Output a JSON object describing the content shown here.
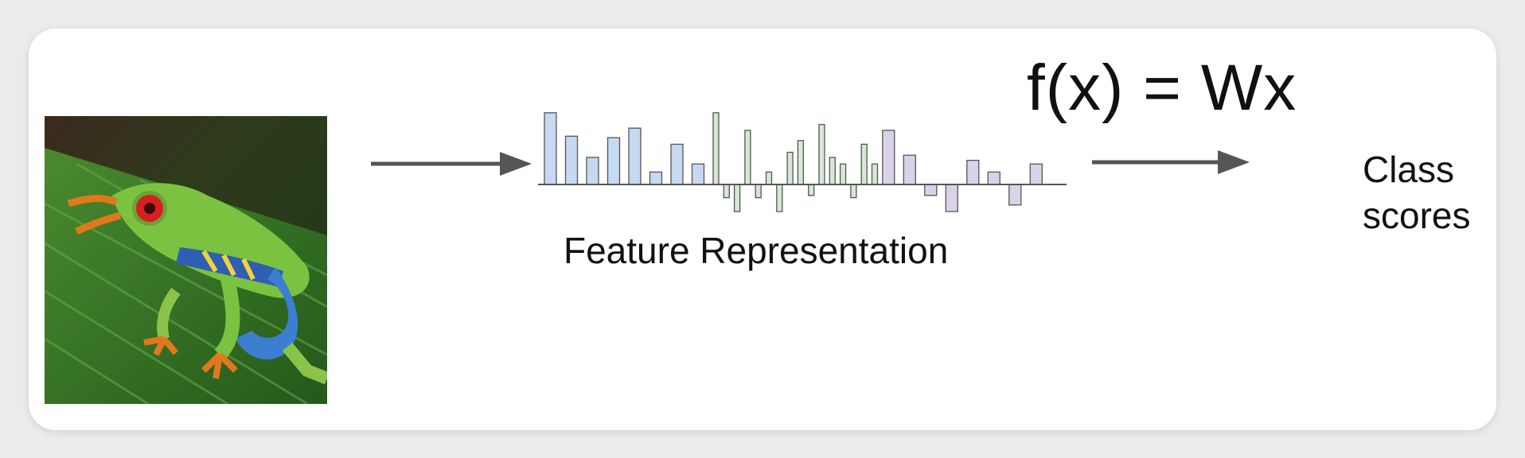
{
  "formula": "f(x) = Wx",
  "feature_label": "Feature Representation",
  "output_label": {
    "line1": "Class",
    "line2": "scores"
  },
  "colors": {
    "blue_bar": "#c6d9f0",
    "green_bar": "#d5e8d4",
    "purple_bar": "#d9d2e9",
    "arrow": "#555555"
  },
  "feature_bars": [
    {
      "group": "blue",
      "value": 0.98
    },
    {
      "group": "blue",
      "value": 0.66
    },
    {
      "group": "blue",
      "value": 0.37
    },
    {
      "group": "blue",
      "value": 0.64
    },
    {
      "group": "blue",
      "value": 0.77
    },
    {
      "group": "blue",
      "value": 0.17
    },
    {
      "group": "blue",
      "value": 0.55
    },
    {
      "group": "blue",
      "value": 0.28
    },
    {
      "group": "green",
      "value": 0.98
    },
    {
      "group": "green",
      "value": -0.18
    },
    {
      "group": "green",
      "value": -0.37
    },
    {
      "group": "green",
      "value": 0.74
    },
    {
      "group": "green",
      "value": -0.18
    },
    {
      "group": "green",
      "value": 0.17
    },
    {
      "group": "green",
      "value": -0.37
    },
    {
      "group": "green",
      "value": 0.44
    },
    {
      "group": "green",
      "value": 0.6
    },
    {
      "group": "green",
      "value": -0.15
    },
    {
      "group": "green",
      "value": 0.82
    },
    {
      "group": "green",
      "value": 0.37
    },
    {
      "group": "green",
      "value": 0.28
    },
    {
      "group": "green",
      "value": -0.18
    },
    {
      "group": "green",
      "value": 0.55
    },
    {
      "group": "green",
      "value": 0.28
    },
    {
      "group": "purple",
      "value": 0.74
    },
    {
      "group": "purple",
      "value": 0.4
    },
    {
      "group": "purple",
      "value": -0.15
    },
    {
      "group": "purple",
      "value": -0.37
    },
    {
      "group": "purple",
      "value": 0.33
    },
    {
      "group": "purple",
      "value": 0.17
    },
    {
      "group": "purple",
      "value": -0.28
    },
    {
      "group": "purple",
      "value": 0.28
    }
  ]
}
